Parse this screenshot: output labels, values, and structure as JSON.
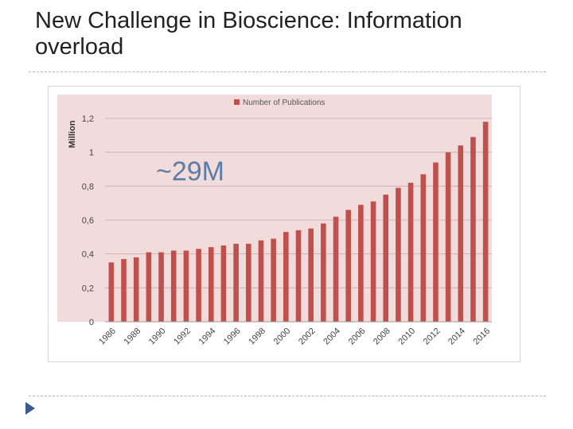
{
  "slide": {
    "title": "New Challenge in Bioscience: Information overload",
    "bullet_icon": "triangle-bullet-icon",
    "accent_color": "#3a5b8c"
  },
  "chart_data": {
    "type": "bar",
    "title": "",
    "xlabel": "",
    "ylabel": "Million",
    "ylim": [
      0,
      1.2
    ],
    "yticks": [
      "0",
      "0,2",
      "0,4",
      "0,6",
      "0,8",
      "1",
      "1,2"
    ],
    "grid": true,
    "legend_position": "top",
    "annotation": "~29M",
    "bar_color": "#c0504d",
    "plot_background": "#f2dcdb",
    "categories": [
      "1986",
      "1987",
      "1988",
      "1989",
      "1990",
      "1991",
      "1992",
      "1993",
      "1994",
      "1995",
      "1996",
      "1997",
      "1998",
      "1999",
      "2000",
      "2001",
      "2002",
      "2003",
      "2004",
      "2005",
      "2006",
      "2007",
      "2008",
      "2009",
      "2010",
      "2011",
      "2012",
      "2013",
      "2014",
      "2015",
      "2016"
    ],
    "xtick_labels": [
      "1986",
      "1988",
      "1990",
      "1992",
      "1994",
      "1996",
      "1998",
      "2000",
      "2002",
      "2004",
      "2006",
      "2008",
      "2010",
      "2012",
      "2014",
      "2016"
    ],
    "series": [
      {
        "name": "Number of Publications",
        "values": [
          0.35,
          0.37,
          0.38,
          0.41,
          0.41,
          0.42,
          0.42,
          0.43,
          0.44,
          0.45,
          0.46,
          0.46,
          0.48,
          0.49,
          0.53,
          0.54,
          0.55,
          0.58,
          0.62,
          0.66,
          0.69,
          0.71,
          0.75,
          0.79,
          0.82,
          0.87,
          0.94,
          1.0,
          1.04,
          1.09,
          1.18
        ]
      }
    ]
  }
}
